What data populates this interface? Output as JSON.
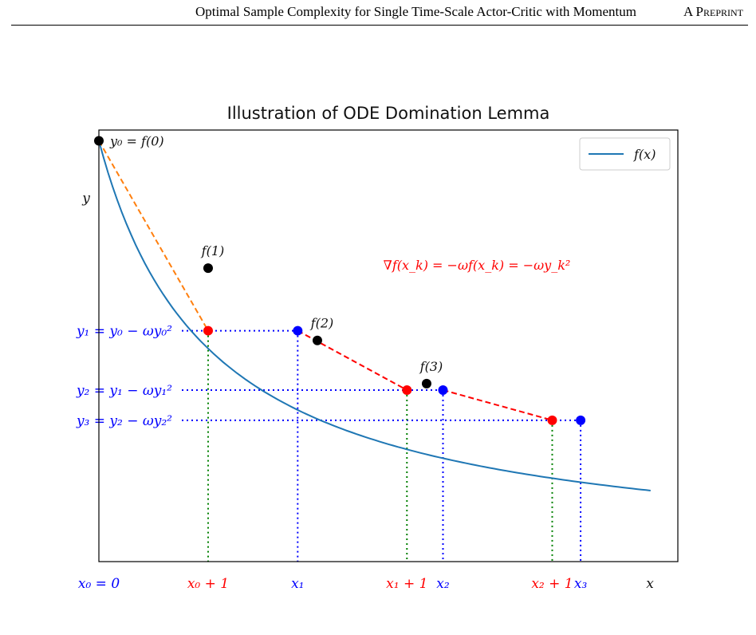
{
  "header": {
    "title": "Optimal Sample Complexity for Single Time-Scale Actor-Critic with Momentum",
    "tag": "A Preprint"
  },
  "chart_data": {
    "type": "line",
    "title": "Illustration of ODE Domination Lemma",
    "xlabel": "x",
    "ylabel": "y",
    "legend": {
      "placement": "top-right",
      "label": "f(x)"
    },
    "grid": false,
    "xlim": [
      0,
      5.3
    ],
    "ylim": [
      0,
      4
    ],
    "curve_color": "#1f77b4",
    "omega": 0.25,
    "y0": 3.9,
    "x_max": 5.05,
    "annotation": "∇f(x_k) = −ωf(x_k) = −ωy_k²",
    "black_points": [
      {
        "label": "y₀ = f(0)",
        "x": 0,
        "y": 3.9
      },
      {
        "label": "f(1)",
        "x": 1,
        "y": 2.72
      },
      {
        "label": "f(2)",
        "x": 2,
        "y": 2.05
      },
      {
        "label": "f(3)",
        "x": 3,
        "y": 1.65
      }
    ],
    "blue_points": [
      {
        "x": 1.82,
        "y": 2.14
      },
      {
        "x": 3.15,
        "y": 1.59
      },
      {
        "x": 4.41,
        "y": 1.31
      }
    ],
    "red_points": [
      {
        "x": 1,
        "y": 2.14
      },
      {
        "x": 2.82,
        "y": 1.59
      },
      {
        "x": 4.15,
        "y": 1.31
      }
    ],
    "tangents": [
      {
        "x1": 0,
        "y1": 3.9,
        "x2": 1,
        "y2": 2.14,
        "color": "#ff7f0e"
      },
      {
        "x1": 1.82,
        "y1": 2.14,
        "x2": 2.82,
        "y2": 1.59,
        "color": "#ff0000"
      },
      {
        "x1": 3.15,
        "y1": 1.59,
        "x2": 4.15,
        "y2": 1.31,
        "color": "#ff0000"
      }
    ],
    "y_labels": [
      {
        "text": "y₁ = y₀ − ωy₀²",
        "y": 2.14
      },
      {
        "text": "y₂ = y₁ − ωy₁²",
        "y": 1.59
      },
      {
        "text": "y₃ = y₂ − ωy₂²",
        "y": 1.31
      }
    ],
    "x_labels": [
      {
        "text": "x₀ = 0",
        "x": 0,
        "color": "#0000ff"
      },
      {
        "text": "x₀ + 1",
        "x": 1,
        "color": "#ff0000"
      },
      {
        "text": "x₁",
        "x": 1.82,
        "color": "#0000ff"
      },
      {
        "text": "x₁ + 1",
        "x": 2.82,
        "color": "#ff0000"
      },
      {
        "text": "x₂",
        "x": 3.15,
        "color": "#0000ff"
      },
      {
        "text": "x₂ + 1",
        "x": 4.15,
        "color": "#ff0000"
      },
      {
        "text": "x₃",
        "x": 4.41,
        "color": "#0000ff"
      }
    ],
    "colors": {
      "dotted_guides": "#0000ff",
      "vertical_guides_red": "#008000",
      "annotation": "#ff0000"
    }
  }
}
